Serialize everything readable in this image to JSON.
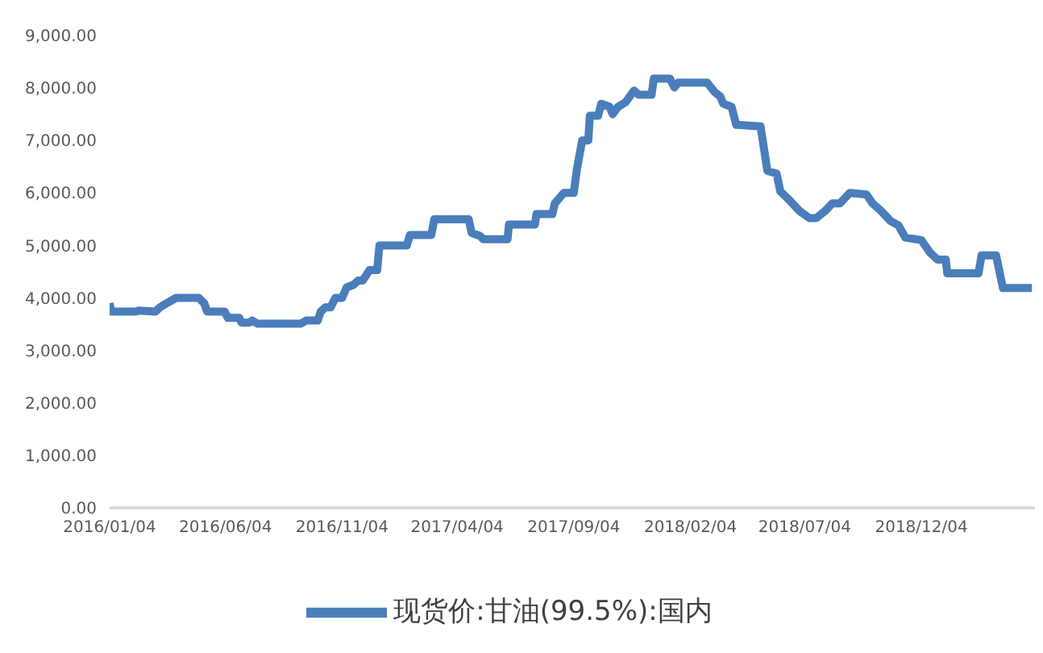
{
  "chart_data": {
    "type": "line",
    "legend": "bottom",
    "xlim": [
      "2016-01-04",
      "2019-05-02"
    ],
    "xticks": [
      {
        "value": "2016-01-04",
        "label": "2016/01/04"
      },
      {
        "value": "2016-06-04",
        "label": "2016/06/04"
      },
      {
        "value": "2016-11-04",
        "label": "2016/11/04"
      },
      {
        "value": "2017-04-04",
        "label": "2017/04/04"
      },
      {
        "value": "2017-09-04",
        "label": "2017/09/04"
      },
      {
        "value": "2018-02-04",
        "label": "2018/02/04"
      },
      {
        "value": "2018-07-04",
        "label": "2018/07/04"
      },
      {
        "value": "2018-12-04",
        "label": "2018/12/04"
      }
    ],
    "ylim": [
      0,
      9000
    ],
    "yticks": [
      {
        "value": 0,
        "label": "0.00"
      },
      {
        "value": 1000,
        "label": "1,000.00"
      },
      {
        "value": 2000,
        "label": "2,000.00"
      },
      {
        "value": 3000,
        "label": "3,000.00"
      },
      {
        "value": 4000,
        "label": "4,000.00"
      },
      {
        "value": 5000,
        "label": "5,000.00"
      },
      {
        "value": 6000,
        "label": "6,000.00"
      },
      {
        "value": 7000,
        "label": "7,000.00"
      },
      {
        "value": 8000,
        "label": "8,000.00"
      },
      {
        "value": 9000,
        "label": "9,000.00"
      }
    ],
    "x": [
      "2016-01-04",
      "2016-01-06",
      "2016-02-07",
      "2016-02-11",
      "2016-03-04",
      "2016-03-10",
      "2016-03-19",
      "2016-03-31",
      "2016-04-30",
      "2016-05-07",
      "2016-05-11",
      "2016-06-03",
      "2016-06-07",
      "2016-06-22",
      "2016-06-25",
      "2016-07-05",
      "2016-07-09",
      "2016-07-16",
      "2016-09-11",
      "2016-09-18",
      "2016-10-03",
      "2016-10-07",
      "2016-10-13",
      "2016-10-20",
      "2016-10-26",
      "2016-11-04",
      "2016-11-10",
      "2016-11-19",
      "2016-11-25",
      "2016-12-01",
      "2016-12-10",
      "2016-12-20",
      "2016-12-23",
      "2017-01-28",
      "2017-02-01",
      "2017-03-01",
      "2017-03-05",
      "2017-04-19",
      "2017-04-23",
      "2017-05-04",
      "2017-05-08",
      "2017-06-09",
      "2017-06-11",
      "2017-07-15",
      "2017-07-17",
      "2017-08-07",
      "2017-08-10",
      "2017-08-22",
      "2017-09-04",
      "2017-09-08",
      "2017-09-15",
      "2017-09-23",
      "2017-09-25",
      "2017-10-06",
      "2017-10-10",
      "2017-10-21",
      "2017-10-25",
      "2017-11-01",
      "2017-11-11",
      "2017-11-22",
      "2017-11-28",
      "2017-12-15",
      "2017-12-18",
      "2018-01-08",
      "2018-01-14",
      "2018-01-19",
      "2018-02-26",
      "2018-03-08",
      "2018-03-15",
      "2018-03-19",
      "2018-03-30",
      "2018-04-05",
      "2018-05-07",
      "2018-05-16",
      "2018-05-28",
      "2018-06-02",
      "2018-06-12",
      "2018-06-27",
      "2018-07-10",
      "2018-07-19",
      "2018-07-31",
      "2018-08-09",
      "2018-08-19",
      "2018-09-01",
      "2018-09-23",
      "2018-10-01",
      "2018-10-12",
      "2018-10-25",
      "2018-11-04",
      "2018-11-13",
      "2018-12-04",
      "2018-12-15",
      "2018-12-25",
      "2019-01-05",
      "2019-01-07",
      "2019-02-17",
      "2019-02-21",
      "2019-03-12",
      "2019-03-21",
      "2019-04-28"
    ],
    "series": [
      {
        "name": "现货价:甘油(99.5%):国内",
        "color": "#4a7ebb",
        "values": [
          3900,
          3740,
          3740,
          3760,
          3740,
          3820,
          3900,
          4000,
          4000,
          3900,
          3740,
          3740,
          3620,
          3620,
          3530,
          3530,
          3570,
          3510,
          3510,
          3570,
          3570,
          3740,
          3820,
          3820,
          4000,
          4000,
          4200,
          4250,
          4330,
          4330,
          4530,
          4530,
          5000,
          5000,
          5200,
          5200,
          5500,
          5500,
          5240,
          5180,
          5120,
          5120,
          5400,
          5400,
          5600,
          5600,
          5800,
          6000,
          6000,
          6450,
          7000,
          7000,
          7470,
          7470,
          7700,
          7640,
          7500,
          7640,
          7730,
          7950,
          7870,
          7870,
          8180,
          8180,
          8010,
          8100,
          8100,
          7920,
          7840,
          7700,
          7640,
          7300,
          7270,
          6420,
          6370,
          6030,
          5890,
          5660,
          5520,
          5520,
          5660,
          5800,
          5800,
          6000,
          5970,
          5800,
          5660,
          5460,
          5380,
          5150,
          5100,
          4870,
          4730,
          4730,
          4470,
          4470,
          4810,
          4810,
          4190,
          4190
        ]
      }
    ]
  }
}
